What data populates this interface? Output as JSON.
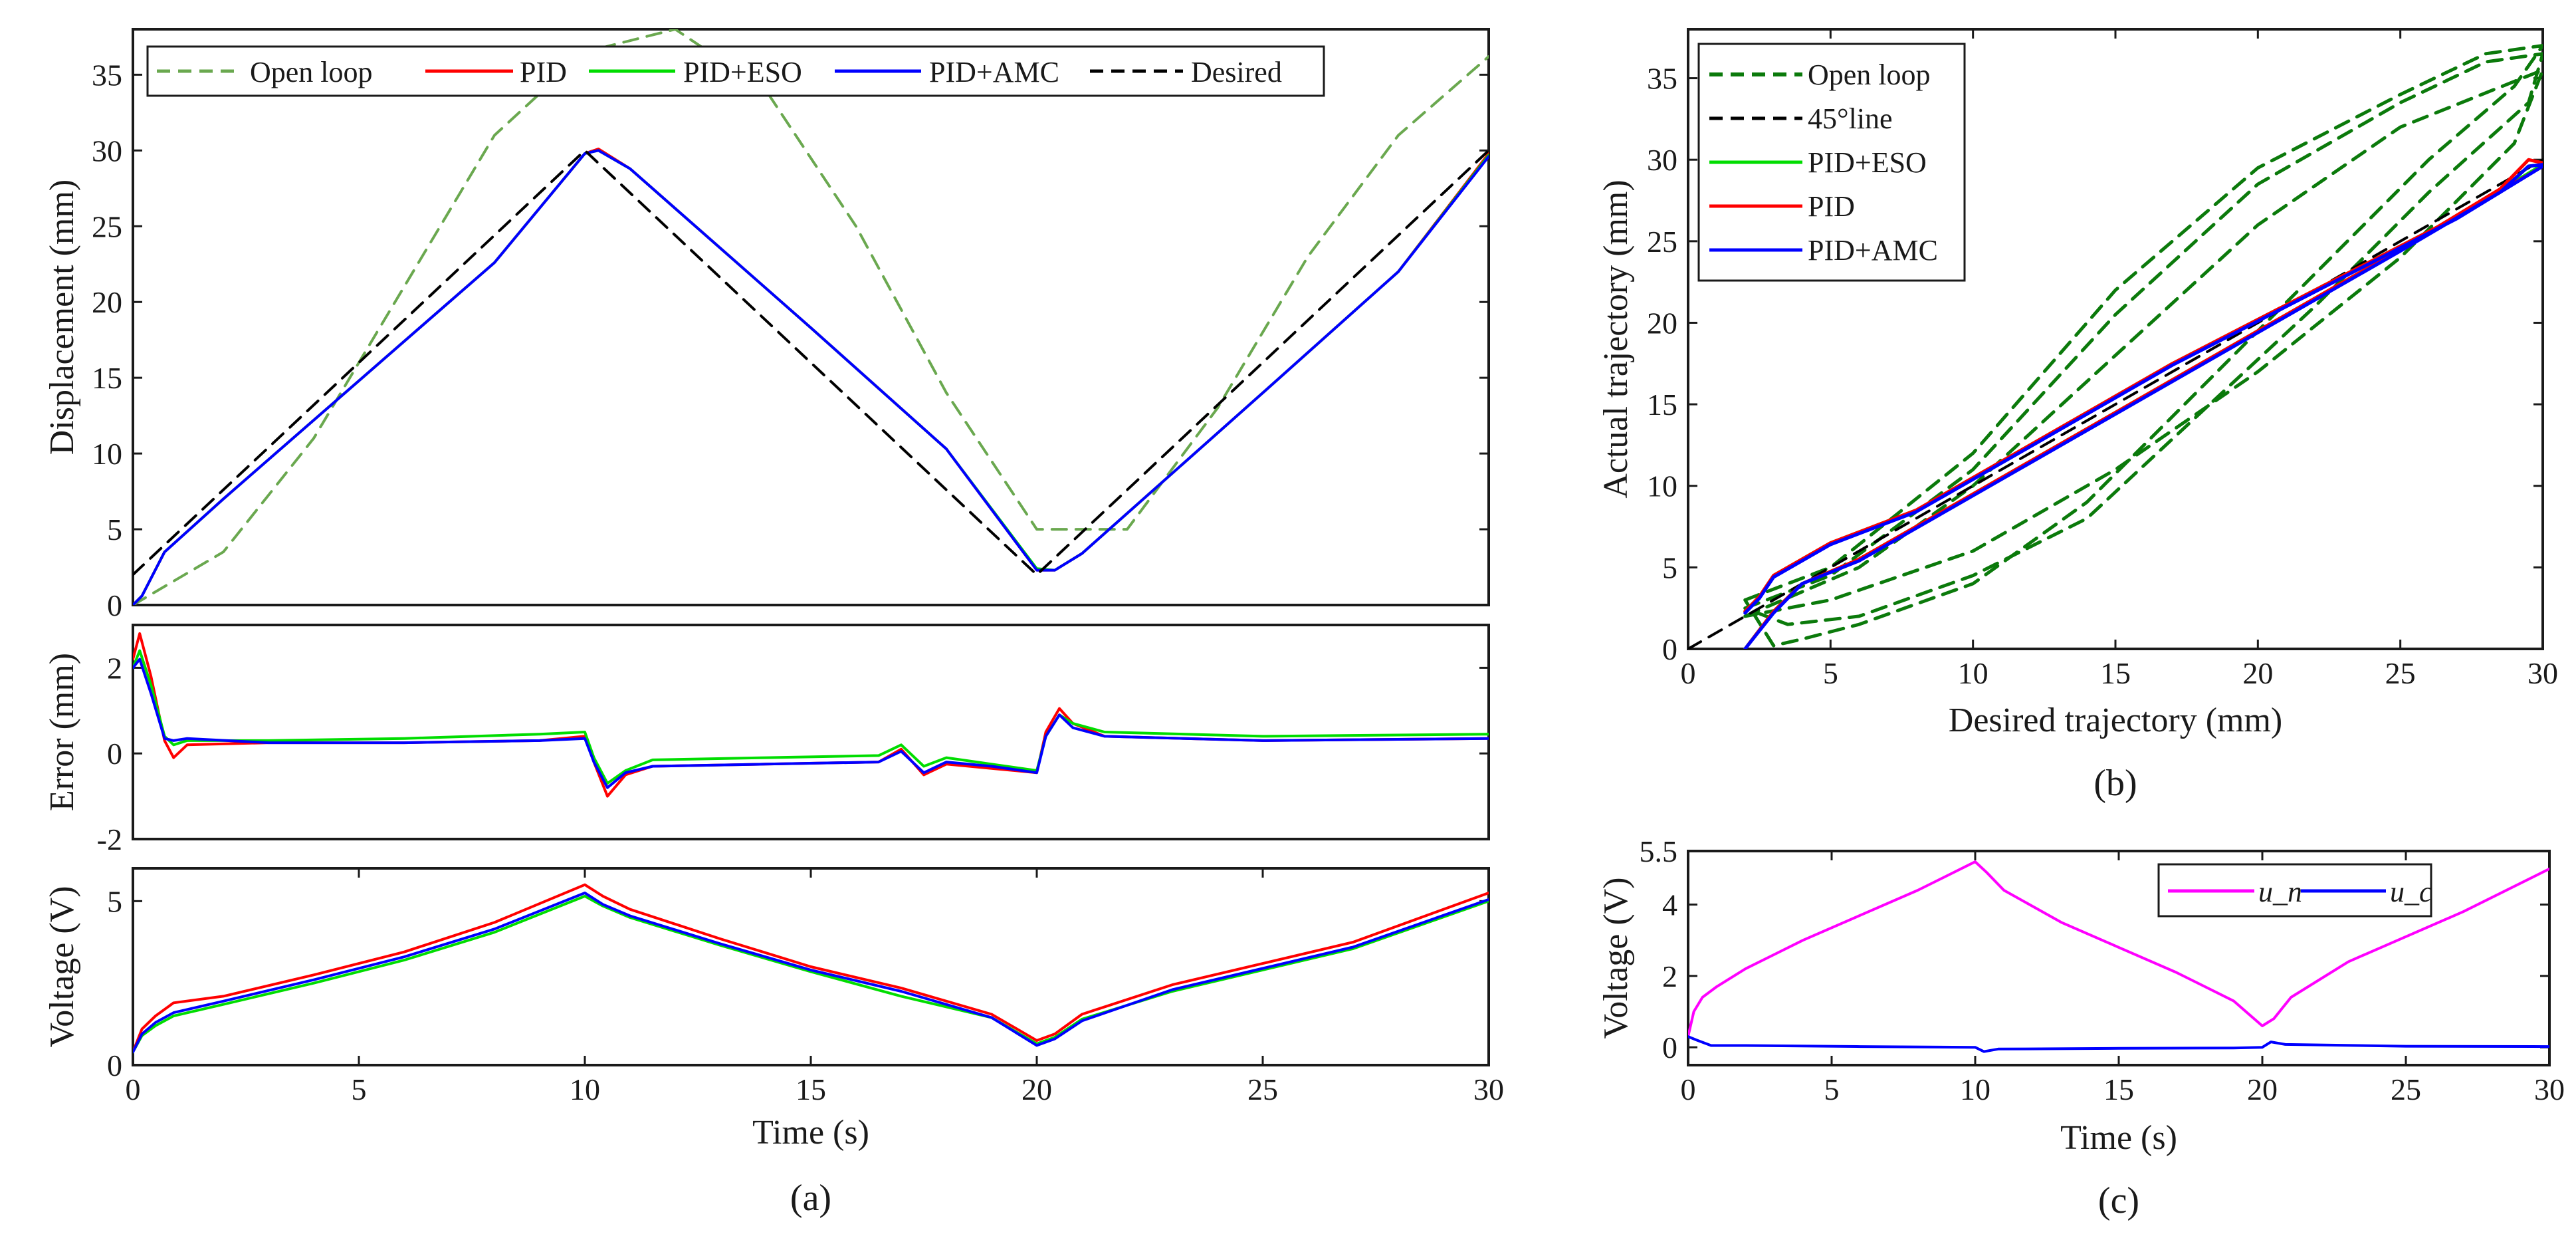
{
  "chart_data": [
    {
      "id": "a1",
      "type": "line",
      "panel_caption": "",
      "xlim": [
        0,
        30
      ],
      "ylim": [
        0,
        38
      ],
      "xticks": [],
      "yticks": [
        0,
        5,
        10,
        15,
        20,
        25,
        30,
        35
      ],
      "xlabel": "",
      "ylabel": "Displacement (mm)",
      "grid": false,
      "legend_position": "top",
      "legend": [
        "Open loop",
        "PID",
        "PID+ESO",
        "PID+AMC",
        "Desired"
      ],
      "series": [
        {
          "name": "Open loop",
          "color": "#6aa84f",
          "dash": "dashed",
          "x": [
            0,
            2,
            4,
            6,
            8,
            10,
            12,
            14,
            16,
            18,
            20,
            22,
            24,
            26,
            28,
            30
          ],
          "y": [
            0,
            3.5,
            11,
            21,
            31,
            36.5,
            38,
            34,
            25,
            14,
            5,
            5,
            13,
            23,
            31,
            36.2
          ]
        },
        {
          "name": "PID",
          "color": "#ff0000",
          "dash": "solid",
          "x": [
            0,
            0.2,
            0.7,
            2,
            5,
            8,
            10,
            10.3,
            11,
            15,
            18,
            20,
            20.4,
            21,
            25,
            28,
            30
          ],
          "y": [
            0,
            0.6,
            3.5,
            7,
            14.8,
            22.6,
            29.8,
            30.1,
            28.8,
            18.3,
            10.3,
            2.3,
            2.3,
            3.4,
            14,
            22,
            29.8
          ]
        },
        {
          "name": "PID+ESO",
          "color": "#00dd00",
          "dash": "solid",
          "x": [
            0,
            0.2,
            0.7,
            2,
            5,
            8,
            10,
            10.3,
            11,
            15,
            18,
            20,
            20.4,
            21,
            25,
            28,
            30
          ],
          "y": [
            0,
            0.6,
            3.5,
            7,
            14.8,
            22.6,
            29.8,
            30,
            28.8,
            18.3,
            10.3,
            2.4,
            2.3,
            3.4,
            14,
            22,
            29.7
          ]
        },
        {
          "name": "PID+AMC",
          "color": "#0000ff",
          "dash": "solid",
          "x": [
            0,
            0.2,
            0.7,
            2,
            5,
            8,
            10,
            10.3,
            11,
            15,
            18,
            20,
            20.4,
            21,
            25,
            28,
            30
          ],
          "y": [
            0,
            0.6,
            3.5,
            7,
            14.8,
            22.6,
            29.8,
            30,
            28.8,
            18.3,
            10.3,
            2.3,
            2.3,
            3.4,
            14,
            22,
            29.6
          ]
        },
        {
          "name": "Desired",
          "color": "#000000",
          "dash": "dashed",
          "x": [
            0,
            10,
            20,
            30
          ],
          "y": [
            2,
            30,
            2,
            30
          ]
        }
      ]
    },
    {
      "id": "a2",
      "type": "line",
      "panel_caption": "",
      "xlim": [
        0,
        30
      ],
      "ylim": [
        -2,
        3
      ],
      "xticks": [],
      "yticks": [
        -2,
        0,
        2
      ],
      "xlabel": "",
      "ylabel": "Error (mm)",
      "grid": false,
      "legend": [],
      "series": [
        {
          "name": "PID",
          "color": "#ff0000",
          "dash": "solid",
          "x": [
            0,
            0.15,
            0.4,
            0.7,
            0.9,
            1.2,
            3,
            6,
            9,
            10,
            10.2,
            10.5,
            10.9,
            11.5,
            14,
            16.5,
            17,
            17.5,
            18,
            19,
            20,
            20.2,
            20.5,
            20.8,
            21.5,
            25,
            30
          ],
          "y": [
            2.2,
            2.8,
            1.8,
            0.3,
            -0.1,
            0.2,
            0.25,
            0.25,
            0.3,
            0.4,
            -0.2,
            -1.0,
            -0.5,
            -0.3,
            -0.25,
            -0.2,
            0.1,
            -0.5,
            -0.25,
            -0.35,
            -0.45,
            0.5,
            1.05,
            0.7,
            0.4,
            0.3,
            0.35
          ]
        },
        {
          "name": "PID+ESO",
          "color": "#00dd00",
          "dash": "solid",
          "x": [
            0,
            0.15,
            0.4,
            0.7,
            0.9,
            1.2,
            3,
            6,
            9,
            10,
            10.2,
            10.5,
            10.9,
            11.5,
            14,
            16.5,
            17,
            17.5,
            18,
            19,
            20,
            20.2,
            20.5,
            20.8,
            21.5,
            25,
            30
          ],
          "y": [
            2.0,
            2.4,
            1.6,
            0.4,
            0.2,
            0.3,
            0.3,
            0.35,
            0.45,
            0.5,
            -0.1,
            -0.7,
            -0.4,
            -0.15,
            -0.1,
            -0.05,
            0.2,
            -0.3,
            -0.1,
            -0.25,
            -0.4,
            0.4,
            0.9,
            0.7,
            0.5,
            0.4,
            0.45
          ]
        },
        {
          "name": "PID+AMC",
          "color": "#0000ff",
          "dash": "solid",
          "x": [
            0,
            0.15,
            0.4,
            0.7,
            0.9,
            1.2,
            3,
            6,
            9,
            10,
            10.2,
            10.5,
            10.9,
            11.5,
            14,
            16.5,
            17,
            17.5,
            18,
            19,
            20,
            20.2,
            20.5,
            20.8,
            21.5,
            25,
            30
          ],
          "y": [
            2.0,
            2.2,
            1.4,
            0.35,
            0.3,
            0.35,
            0.25,
            0.25,
            0.3,
            0.35,
            -0.2,
            -0.8,
            -0.45,
            -0.3,
            -0.25,
            -0.2,
            0.05,
            -0.45,
            -0.2,
            -0.3,
            -0.45,
            0.4,
            0.9,
            0.6,
            0.4,
            0.3,
            0.35
          ]
        }
      ]
    },
    {
      "id": "a3",
      "type": "line",
      "panel_caption": "(a)",
      "xlim": [
        0,
        30
      ],
      "ylim": [
        0,
        6
      ],
      "xticks": [
        0,
        5,
        10,
        15,
        20,
        25,
        30
      ],
      "yticks": [
        0,
        5
      ],
      "xlabel": "Time (s)",
      "ylabel": "Voltage (V)",
      "grid": false,
      "legend": [],
      "series": [
        {
          "name": "PID",
          "color": "#ff0000",
          "dash": "solid",
          "x": [
            0,
            0.2,
            0.5,
            0.9,
            2,
            4,
            6,
            8,
            10,
            10.4,
            11,
            13,
            15,
            17,
            19,
            20,
            20.4,
            21,
            23,
            25,
            27,
            30
          ],
          "y": [
            0.4,
            1.1,
            1.5,
            1.9,
            2.1,
            2.75,
            3.45,
            4.35,
            5.5,
            5.15,
            4.75,
            3.85,
            3.0,
            2.35,
            1.55,
            0.75,
            0.95,
            1.55,
            2.45,
            3.1,
            3.75,
            5.25
          ]
        },
        {
          "name": "PID+ESO",
          "color": "#00dd00",
          "dash": "solid",
          "x": [
            0,
            0.2,
            0.5,
            0.9,
            2,
            4,
            6,
            8,
            10,
            10.4,
            11,
            13,
            15,
            17,
            19,
            20,
            20.4,
            21,
            23,
            25,
            27,
            30
          ],
          "y": [
            0.4,
            0.9,
            1.2,
            1.5,
            1.85,
            2.5,
            3.2,
            4.05,
            5.15,
            4.85,
            4.5,
            3.65,
            2.85,
            2.1,
            1.45,
            0.65,
            0.85,
            1.4,
            2.25,
            2.9,
            3.55,
            5.0
          ]
        },
        {
          "name": "PID+AMC",
          "color": "#0000ff",
          "dash": "solid",
          "x": [
            0,
            0.2,
            0.5,
            0.9,
            2,
            4,
            6,
            8,
            10,
            10.4,
            11,
            13,
            15,
            17,
            19,
            20,
            20.4,
            21,
            23,
            25,
            27,
            30
          ],
          "y": [
            0.4,
            0.95,
            1.3,
            1.6,
            1.95,
            2.6,
            3.3,
            4.15,
            5.25,
            4.9,
            4.55,
            3.7,
            2.9,
            2.25,
            1.45,
            0.6,
            0.8,
            1.35,
            2.3,
            2.95,
            3.6,
            5.05
          ]
        }
      ]
    },
    {
      "id": "b",
      "type": "line",
      "panel_caption": "(b)",
      "xlim": [
        0,
        30
      ],
      "ylim": [
        0,
        38
      ],
      "xticks": [
        0,
        5,
        10,
        15,
        20,
        25,
        30
      ],
      "yticks": [
        0,
        5,
        10,
        15,
        20,
        25,
        30,
        35
      ],
      "xlabel": "Desired trajectory (mm)",
      "ylabel": "Actual trajectory (mm)",
      "grid": false,
      "legend_position": "top-left",
      "legend": [
        "Open loop",
        "45°line",
        "PID+ESO",
        "PID",
        "PID+AMC"
      ],
      "series": [
        {
          "name": "Open loop",
          "color": "#0b7a0b",
          "dash": "dashed",
          "width": 5,
          "x": [
            2,
            5,
            10,
            15,
            20,
            25,
            28,
            30,
            29,
            26,
            22,
            18,
            14,
            10,
            6,
            4,
            3,
            2
          ],
          "y": [
            3,
            5,
            12,
            22,
            29.5,
            34,
            36.5,
            37,
            34.5,
            30,
            23,
            16,
            9,
            4,
            1.5,
            0.6,
            0.2,
            3
          ]
        },
        {
          "name": "Open loop",
          "color": "#0b7a0b",
          "dash": "dashed",
          "width": 5,
          "x": [
            2,
            5,
            10,
            15,
            20,
            25,
            28,
            30,
            29.5,
            26,
            22,
            18,
            14,
            10,
            6,
            3.5,
            2
          ],
          "y": [
            2.5,
            4.5,
            11,
            20.5,
            28.5,
            33.5,
            36,
            36.5,
            33.5,
            28,
            21,
            14.5,
            8,
            4.5,
            2,
            1.5,
            2.5
          ]
        },
        {
          "name": "Open loop",
          "color": "#0b7a0b",
          "dash": "dashed",
          "width": 5,
          "x": [
            2,
            6,
            10,
            15,
            20,
            25,
            30,
            29,
            25,
            20,
            15,
            10,
            5,
            2
          ],
          "y": [
            2,
            5,
            10,
            18,
            26,
            32,
            35.5,
            31,
            24,
            17,
            11,
            6,
            3,
            2
          ]
        },
        {
          "name": "45°line",
          "color": "#000000",
          "dash": "dashed",
          "width": 4,
          "x": [
            0,
            30
          ],
          "y": [
            0,
            30
          ]
        },
        {
          "name": "PID+ESO",
          "color": "#00dd00",
          "dash": "solid",
          "width": 5,
          "x": [
            2,
            3,
            4,
            6,
            10,
            15,
            20,
            25,
            28.5,
            29.5,
            30,
            30,
            27,
            22,
            17,
            12,
            8,
            5,
            3,
            2.5,
            2
          ],
          "y": [
            0,
            2.3,
            4,
            5.5,
            9.5,
            14.5,
            19.5,
            24.5,
            28,
            29.6,
            29.7,
            29.7,
            26.5,
            22,
            17.5,
            12.5,
            8.5,
            6.5,
            4.5,
            3.2,
            2.3
          ]
        },
        {
          "name": "PID",
          "color": "#ff0000",
          "dash": "solid",
          "width": 5,
          "x": [
            2,
            3,
            4,
            6,
            10,
            15,
            20,
            25,
            28.5,
            29.5,
            30,
            30,
            27,
            22,
            17,
            12,
            8,
            5,
            3,
            2.5,
            2
          ],
          "y": [
            0,
            2.3,
            4,
            5.5,
            9.5,
            14.5,
            19.5,
            24.5,
            28.2,
            30,
            29.8,
            29.6,
            26.5,
            22,
            17.5,
            12.5,
            8.5,
            6.5,
            4.5,
            3.2,
            2.3
          ]
        },
        {
          "name": "PID+AMC",
          "color": "#0000ff",
          "dash": "solid",
          "width": 5,
          "x": [
            2,
            3,
            4,
            6,
            10,
            15,
            20,
            25,
            28.5,
            29.5,
            30,
            30,
            27,
            22,
            17,
            12,
            8,
            5,
            3,
            2.5,
            2
          ],
          "y": [
            0,
            2.2,
            4,
            5.4,
            9.4,
            14.4,
            19.4,
            24.4,
            28,
            29.6,
            29.7,
            29.6,
            26.4,
            21.9,
            17.4,
            12.4,
            8.4,
            6.4,
            4.4,
            3.1,
            2.2
          ]
        }
      ]
    },
    {
      "id": "c",
      "type": "line",
      "panel_caption": "(c)",
      "xlim": [
        0,
        30
      ],
      "ylim": [
        -0.5,
        5.5
      ],
      "xticks": [
        0,
        5,
        10,
        15,
        20,
        25,
        30
      ],
      "yticks": [
        0,
        2,
        4,
        5.5
      ],
      "xlabel": "Time (s)",
      "ylabel": "Voltage (V)",
      "grid": false,
      "legend_position": "top-right",
      "legend": [
        "u_n",
        "u_c"
      ],
      "series": [
        {
          "name": "u_n",
          "color": "#ff00ff",
          "dash": "solid",
          "width": 4,
          "x": [
            0,
            0.2,
            0.5,
            1,
            2,
            4,
            6,
            8,
            10,
            10.4,
            11,
            13,
            15,
            17,
            19,
            20,
            20.4,
            21,
            23,
            25,
            27,
            30
          ],
          "y": [
            0.3,
            1.0,
            1.4,
            1.7,
            2.2,
            3.0,
            3.7,
            4.4,
            5.2,
            4.9,
            4.4,
            3.5,
            2.8,
            2.1,
            1.3,
            0.6,
            0.8,
            1.4,
            2.4,
            3.1,
            3.8,
            5.0
          ]
        },
        {
          "name": "u_c",
          "color": "#0000ff",
          "dash": "solid",
          "width": 4,
          "x": [
            0,
            0.3,
            0.8,
            2,
            6,
            10,
            10.3,
            10.8,
            15,
            19,
            20,
            20.3,
            20.8,
            25,
            30
          ],
          "y": [
            0.3,
            0.2,
            0.05,
            0.05,
            0.02,
            0.0,
            -0.12,
            -0.05,
            -0.03,
            -0.02,
            0.0,
            0.15,
            0.08,
            0.03,
            0.02
          ]
        }
      ]
    }
  ]
}
